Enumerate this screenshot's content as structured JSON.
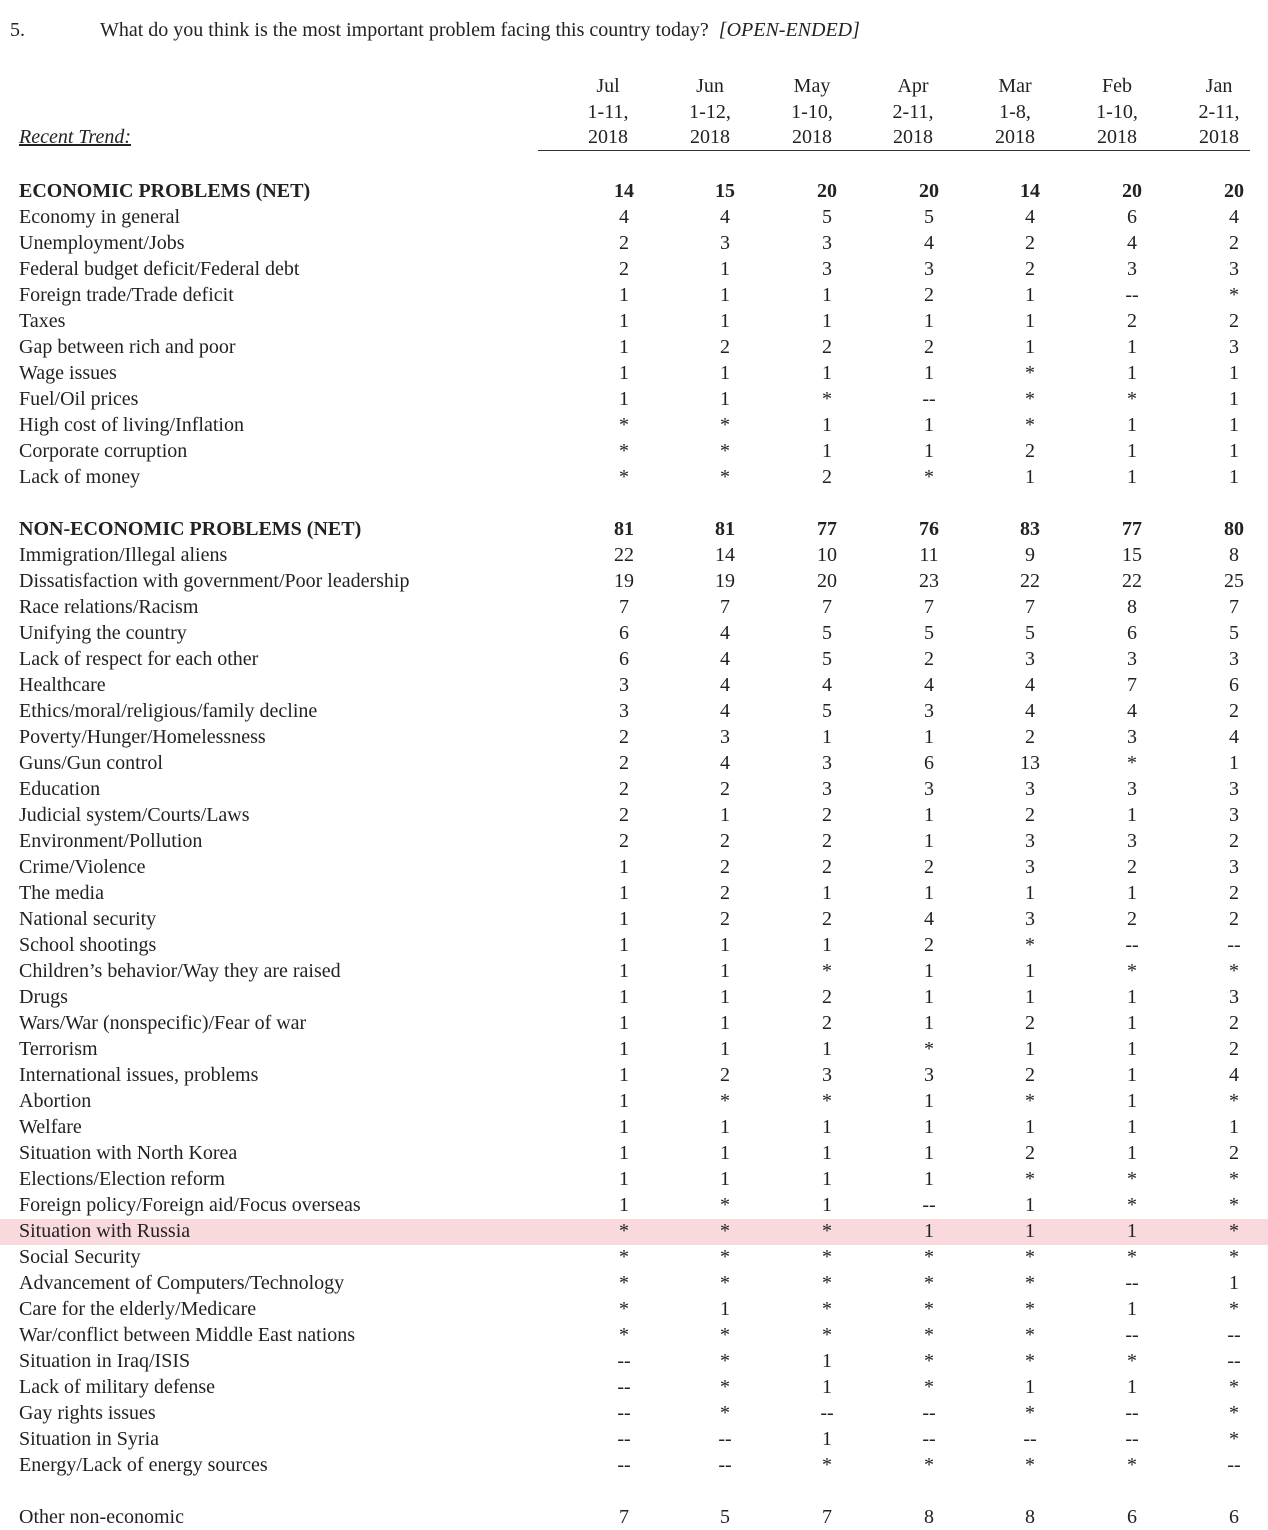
{
  "question": {
    "number": "5.",
    "text": "What do you think is the most important problem facing this country today?",
    "note": "[OPEN-ENDED]"
  },
  "table": {
    "trend_label": "Recent Trend:",
    "columns": [
      [
        "Jul",
        "1-11,",
        "2018"
      ],
      [
        "Jun",
        "1-12,",
        "2018"
      ],
      [
        "May",
        "1-10,",
        "2018"
      ],
      [
        "Apr",
        "2-11,",
        "2018"
      ],
      [
        "Mar",
        "1-8,",
        "2018"
      ],
      [
        "Feb",
        "1-10,",
        "2018"
      ],
      [
        "Jan",
        "2-11,",
        "2018"
      ]
    ],
    "sections": [
      {
        "rows": [
          {
            "label": "ECONOMIC PROBLEMS (NET)",
            "bold": true,
            "values": [
              14,
              15,
              20,
              20,
              14,
              20,
              20
            ]
          },
          {
            "label": "Economy in general",
            "values": [
              4,
              4,
              5,
              5,
              4,
              6,
              4
            ]
          },
          {
            "label": "Unemployment/Jobs",
            "values": [
              2,
              3,
              3,
              4,
              2,
              4,
              2
            ]
          },
          {
            "label": "Federal budget deficit/Federal debt",
            "values": [
              2,
              1,
              3,
              3,
              2,
              3,
              3
            ]
          },
          {
            "label": "Foreign trade/Trade deficit",
            "values": [
              1,
              1,
              1,
              2,
              1,
              "--",
              "*"
            ]
          },
          {
            "label": "Taxes",
            "values": [
              1,
              1,
              1,
              1,
              1,
              2,
              2
            ]
          },
          {
            "label": "Gap between rich and poor",
            "values": [
              1,
              2,
              2,
              2,
              1,
              1,
              3
            ]
          },
          {
            "label": "Wage issues",
            "values": [
              1,
              1,
              1,
              1,
              "*",
              1,
              1
            ]
          },
          {
            "label": "Fuel/Oil prices",
            "values": [
              1,
              1,
              "*",
              "--",
              "*",
              "*",
              1
            ]
          },
          {
            "label": "High cost of living/Inflation",
            "values": [
              "*",
              "*",
              1,
              1,
              "*",
              1,
              1
            ]
          },
          {
            "label": "Corporate corruption",
            "values": [
              "*",
              "*",
              1,
              1,
              2,
              1,
              1
            ]
          },
          {
            "label": "Lack of money",
            "values": [
              "*",
              "*",
              2,
              "*",
              1,
              1,
              1
            ]
          }
        ]
      },
      {
        "rows": [
          {
            "label": "NON-ECONOMIC PROBLEMS (NET)",
            "bold": true,
            "values": [
              81,
              81,
              77,
              76,
              83,
              77,
              80
            ]
          },
          {
            "label": "Immigration/Illegal aliens",
            "values": [
              22,
              14,
              10,
              11,
              9,
              15,
              8
            ]
          },
          {
            "label": "Dissatisfaction with government/Poor leadership",
            "values": [
              19,
              19,
              20,
              23,
              22,
              22,
              25
            ]
          },
          {
            "label": "Race relations/Racism",
            "values": [
              7,
              7,
              7,
              7,
              7,
              8,
              7
            ]
          },
          {
            "label": "Unifying the country",
            "values": [
              6,
              4,
              5,
              5,
              5,
              6,
              5
            ]
          },
          {
            "label": "Lack of respect for each other",
            "values": [
              6,
              4,
              5,
              2,
              3,
              3,
              3
            ]
          },
          {
            "label": "Healthcare",
            "values": [
              3,
              4,
              4,
              4,
              4,
              7,
              6
            ]
          },
          {
            "label": "Ethics/moral/religious/family decline",
            "values": [
              3,
              4,
              5,
              3,
              4,
              4,
              2
            ]
          },
          {
            "label": "Poverty/Hunger/Homelessness",
            "values": [
              2,
              3,
              1,
              1,
              2,
              3,
              4
            ]
          },
          {
            "label": "Guns/Gun control",
            "values": [
              2,
              4,
              3,
              6,
              13,
              "*",
              1
            ]
          },
          {
            "label": "Education",
            "values": [
              2,
              2,
              3,
              3,
              3,
              3,
              3
            ]
          },
          {
            "label": "Judicial system/Courts/Laws",
            "values": [
              2,
              1,
              2,
              1,
              2,
              1,
              3
            ]
          },
          {
            "label": "Environment/Pollution",
            "values": [
              2,
              2,
              2,
              1,
              3,
              3,
              2
            ]
          },
          {
            "label": "Crime/Violence",
            "values": [
              1,
              2,
              2,
              2,
              3,
              2,
              3
            ]
          },
          {
            "label": "The media",
            "values": [
              1,
              2,
              1,
              1,
              1,
              1,
              2
            ]
          },
          {
            "label": "National security",
            "values": [
              1,
              2,
              2,
              4,
              3,
              2,
              2
            ]
          },
          {
            "label": "School shootings",
            "values": [
              1,
              1,
              1,
              2,
              "*",
              "--",
              "--"
            ]
          },
          {
            "label": "Children’s behavior/Way they are raised",
            "values": [
              1,
              1,
              "*",
              1,
              1,
              "*",
              "*"
            ]
          },
          {
            "label": "Drugs",
            "values": [
              1,
              1,
              2,
              1,
              1,
              1,
              3
            ]
          },
          {
            "label": "Wars/War (nonspecific)/Fear of war",
            "values": [
              1,
              1,
              2,
              1,
              2,
              1,
              2
            ]
          },
          {
            "label": "Terrorism",
            "values": [
              1,
              1,
              1,
              "*",
              1,
              1,
              2
            ]
          },
          {
            "label": "International issues, problems",
            "values": [
              1,
              2,
              3,
              3,
              2,
              1,
              4
            ]
          },
          {
            "label": "Abortion",
            "values": [
              1,
              "*",
              "*",
              1,
              "*",
              1,
              "*"
            ]
          },
          {
            "label": "Welfare",
            "values": [
              1,
              1,
              1,
              1,
              1,
              1,
              1
            ]
          },
          {
            "label": "Situation with North Korea",
            "values": [
              1,
              1,
              1,
              1,
              2,
              1,
              2
            ]
          },
          {
            "label": "Elections/Election reform",
            "values": [
              1,
              1,
              1,
              1,
              "*",
              "*",
              "*"
            ]
          },
          {
            "label": "Foreign policy/Foreign aid/Focus overseas",
            "values": [
              1,
              "*",
              1,
              "--",
              1,
              "*",
              "*"
            ]
          },
          {
            "label": "Situation with Russia",
            "highlight": true,
            "values": [
              "*",
              "*",
              "*",
              1,
              1,
              1,
              "*"
            ]
          },
          {
            "label": "Social Security",
            "values": [
              "*",
              "*",
              "*",
              "*",
              "*",
              "*",
              "*"
            ]
          },
          {
            "label": "Advancement of Computers/Technology",
            "values": [
              "*",
              "*",
              "*",
              "*",
              "*",
              "--",
              1
            ]
          },
          {
            "label": "Care for the elderly/Medicare",
            "values": [
              "*",
              1,
              "*",
              "*",
              "*",
              1,
              "*"
            ]
          },
          {
            "label": "War/conflict between Middle East nations",
            "values": [
              "*",
              "*",
              "*",
              "*",
              "*",
              "--",
              "--"
            ]
          },
          {
            "label": "Situation in Iraq/ISIS",
            "values": [
              "--",
              "*",
              1,
              "*",
              "*",
              "*",
              "--"
            ]
          },
          {
            "label": "Lack of military defense",
            "values": [
              "--",
              "*",
              1,
              "*",
              1,
              1,
              "*"
            ]
          },
          {
            "label": "Gay rights issues",
            "values": [
              "--",
              "*",
              "--",
              "--",
              "*",
              "--",
              "*"
            ]
          },
          {
            "label": "Situation in Syria",
            "values": [
              "--",
              "--",
              1,
              "--",
              "--",
              "--",
              "*"
            ]
          },
          {
            "label": "Energy/Lack of energy sources",
            "values": [
              "--",
              "--",
              "*",
              "*",
              "*",
              "*",
              "--"
            ]
          }
        ]
      },
      {
        "rows": [
          {
            "label": "Other non-economic",
            "values": [
              7,
              5,
              7,
              8,
              8,
              6,
              6
            ]
          }
        ]
      }
    ]
  }
}
